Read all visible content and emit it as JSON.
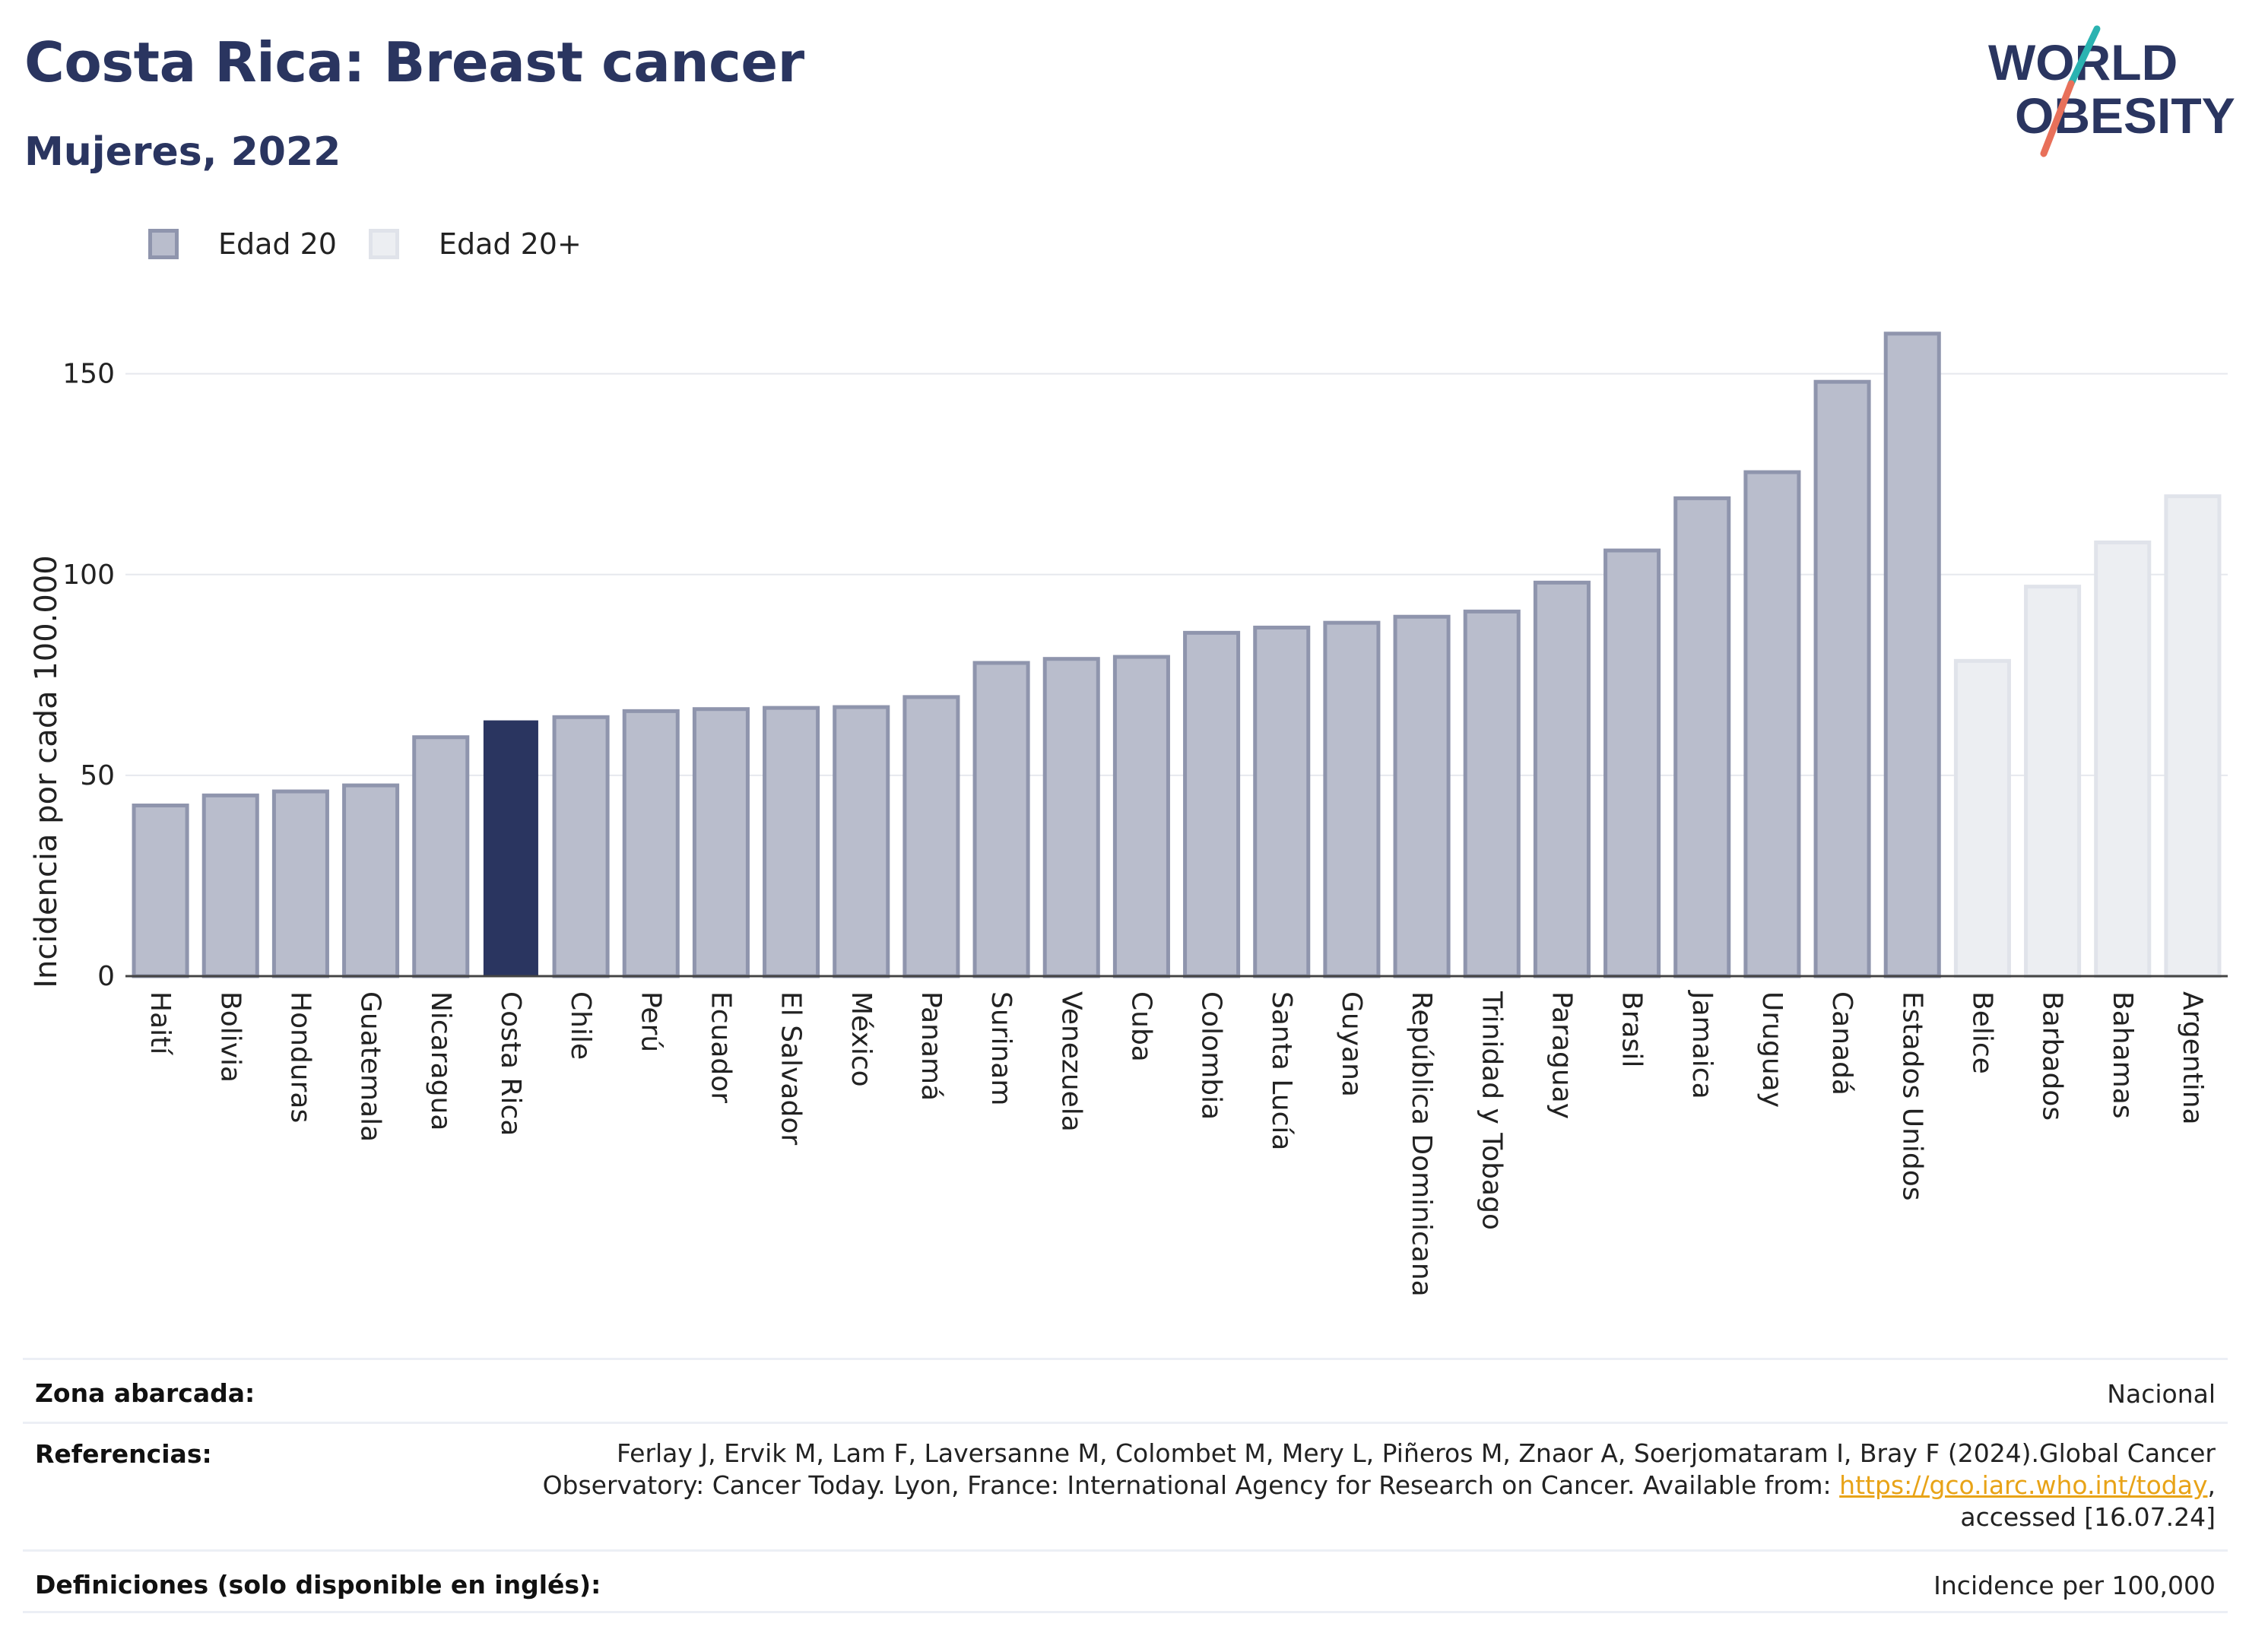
{
  "header": {
    "title": "Costa Rica: Breast cancer",
    "subtitle": "Mujeres, 2022"
  },
  "logo": {
    "line1": "WORLD",
    "line2": "OBESITY",
    "colors": {
      "text": "#2a3560",
      "slash_top": "#2bb3b1",
      "slash_bottom": "#e8705a"
    }
  },
  "legend": [
    {
      "label": "Edad 20",
      "color": "#b9bdcc",
      "border": "#8f95ad"
    },
    {
      "label": "Edad 20+",
      "color": "#eceef2",
      "border": "#e0e3ea"
    }
  ],
  "chart_data": {
    "type": "bar",
    "title": "",
    "xlabel": "",
    "ylabel": "Incidencia por cada 100.000",
    "ylim": [
      0,
      170
    ],
    "yticks": [
      0,
      50,
      100,
      150
    ],
    "grid": true,
    "legend_position": "top-left",
    "highlight": "Costa Rica",
    "colors": {
      "edad20_fill": "#b9bdcc",
      "edad20_border": "#8f95ad",
      "edad20plus_fill": "#eceef2",
      "edad20plus_border": "#e0e3ea",
      "highlight": "#2a3560"
    },
    "categories": [
      "Haití",
      "Bolivia",
      "Honduras",
      "Guatemala",
      "Nicaragua",
      "Costa Rica",
      "Chile",
      "Perú",
      "Ecuador",
      "El Salvador",
      "México",
      "Panamá",
      "Surinam",
      "Venezuela",
      "Cuba",
      "Colombia",
      "Santa Lucía",
      "Guyana",
      "República Dominicana",
      "Trinidad y Tobago",
      "Paraguay",
      "Brasil",
      "Jamaica",
      "Uruguay",
      "Canadá",
      "Estados Unidos",
      "Belice",
      "Barbados",
      "Bahamas",
      "Argentina"
    ],
    "values": [
      42.5,
      45.0,
      46.0,
      47.5,
      59.5,
      63.5,
      64.5,
      66.0,
      66.5,
      66.8,
      67.0,
      69.5,
      78.0,
      79.0,
      79.5,
      85.5,
      86.8,
      88.0,
      89.5,
      90.8,
      98.0,
      106.0,
      119.0,
      125.5,
      148.0,
      160.0,
      78.5,
      97.0,
      108.0,
      119.5
    ],
    "series": [
      "Edad 20",
      "Edad 20",
      "Edad 20",
      "Edad 20",
      "Edad 20",
      "Edad 20",
      "Edad 20",
      "Edad 20",
      "Edad 20",
      "Edad 20",
      "Edad 20",
      "Edad 20",
      "Edad 20",
      "Edad 20",
      "Edad 20",
      "Edad 20",
      "Edad 20",
      "Edad 20",
      "Edad 20",
      "Edad 20",
      "Edad 20",
      "Edad 20",
      "Edad 20",
      "Edad 20",
      "Edad 20",
      "Edad 20",
      "Edad 20+",
      "Edad 20+",
      "Edad 20+",
      "Edad 20+"
    ]
  },
  "info": {
    "zona_key": "Zona abarcada:",
    "zona_val": "Nacional",
    "ref_key": "Referencias:",
    "ref_line1": "Ferlay J, Ervik M, Lam F, Laversanne M, Colombet M, Mery L, Piñeros M, Znaor A, Soerjomataram I, Bray F (2024).Global Cancer",
    "ref_line2_pre": "Observatory: Cancer Today. Lyon, France: International Agency for Research on Cancer. Available from: ",
    "ref_link": "https://gco.iarc.who.int/today",
    "ref_line2_post": ",",
    "ref_line3": "accessed [16.07.24]",
    "def_key": "Definiciones (solo disponible en inglés):",
    "def_val": "Incidence per 100,000"
  }
}
